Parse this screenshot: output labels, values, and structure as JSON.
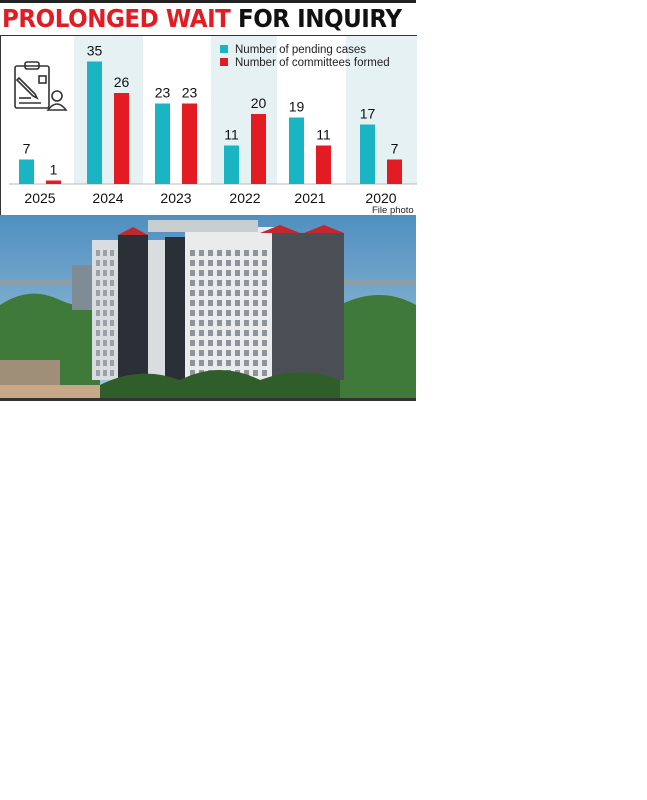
{
  "chart_data": {
    "type": "bar",
    "title": "PROLONGED WAIT FOR INQUIRY",
    "title_parts": [
      "PROLONGED WAIT",
      "FOR INQUIRY"
    ],
    "categories": [
      "2025",
      "2024",
      "2023",
      "2022",
      "2021",
      "2020"
    ],
    "series": [
      {
        "name": "Number of pending cases",
        "color": "#19b5c2",
        "values": [
          7,
          35,
          23,
          11,
          19,
          17
        ]
      },
      {
        "name": "Number of committees formed",
        "color": "#e31b23",
        "values": [
          1,
          26,
          23,
          20,
          11,
          7
        ]
      }
    ],
    "legend_position": "top-right",
    "grid": false,
    "icon": "clipboard-user-icon"
  },
  "caption": "File photo"
}
